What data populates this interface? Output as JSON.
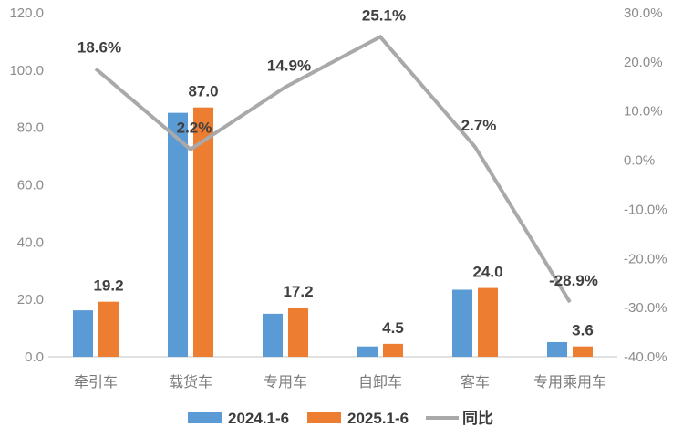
{
  "chart_data": {
    "type": "bar+line",
    "title": "",
    "categories": [
      "牵引车",
      "载货车",
      "专用车",
      "自卸车",
      "客车",
      "专用乘用车"
    ],
    "series": [
      {
        "name": "2024.1-6",
        "type": "bar",
        "axis": "left",
        "color": "#5B9BD5",
        "values": [
          16.2,
          85.1,
          15.0,
          3.6,
          23.4,
          5.1
        ]
      },
      {
        "name": "2025.1-6",
        "type": "bar",
        "axis": "left",
        "color": "#ED7D31",
        "values": [
          19.2,
          87.0,
          17.2,
          4.5,
          24.0,
          3.6
        ],
        "data_labels": [
          "19.2",
          "87.0",
          "17.2",
          "4.5",
          "24.0",
          "3.6"
        ]
      },
      {
        "name": "同比",
        "type": "line",
        "axis": "right",
        "color": "#A9A9A9",
        "values": [
          18.6,
          2.2,
          14.9,
          25.1,
          2.7,
          -28.9
        ],
        "data_labels": [
          "18.6%",
          "2.2%",
          "14.9%",
          "25.1%",
          "2.7%",
          "-28.9%"
        ]
      }
    ],
    "left_axis": {
      "min": 0,
      "max": 120,
      "tick_labels": [
        "0.0",
        "20.0",
        "40.0",
        "60.0",
        "80.0",
        "100.0",
        "120.0"
      ]
    },
    "right_axis": {
      "min": -40,
      "max": 30,
      "tick_labels": [
        "-40.0%",
        "-30.0%",
        "-20.0%",
        "-10.0%",
        "0.0%",
        "10.0%",
        "20.0%",
        "30.0%"
      ]
    },
    "legend": {
      "position": "bottom",
      "items": [
        {
          "label": "2024.1-6",
          "color": "#5B9BD5",
          "marker": "rect"
        },
        {
          "label": "2025.1-6",
          "color": "#ED7D31",
          "marker": "rect"
        },
        {
          "label": "同比",
          "color": "#A9A9A9",
          "marker": "line"
        }
      ]
    },
    "grid": false,
    "colors": {
      "axis_text": "#8c8c8c",
      "data_label": "#404040",
      "baseline": "#D9D9D9",
      "background": "#FFFFFF"
    }
  }
}
